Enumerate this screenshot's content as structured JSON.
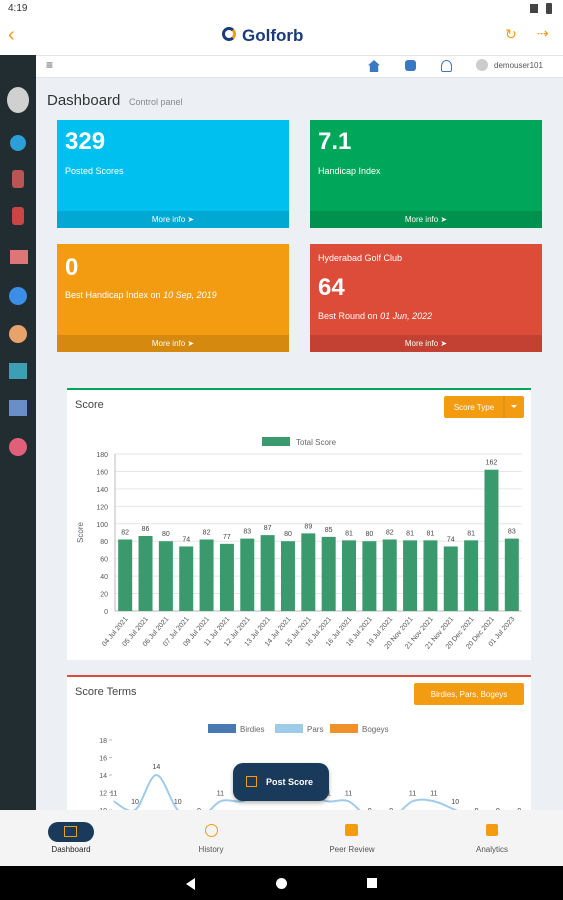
{
  "status_bar": {
    "time": "4:19"
  },
  "header": {
    "brand": "Golforb"
  },
  "toolbar": {
    "user": "demouser101"
  },
  "page": {
    "title": "Dashboard",
    "subtitle": "Control panel"
  },
  "cards": [
    {
      "value": 329,
      "label": "Posted Scores",
      "link": "More info"
    },
    {
      "value": 7.1,
      "label": "Handicap Index",
      "link": "More info"
    },
    {
      "value": 0,
      "label": "Best Handicap Index on",
      "date": "10 Sep, 2019",
      "link": "More info"
    },
    {
      "club": "Hyderabad Golf Club",
      "value": 64,
      "label": "Best Round on",
      "date": "01 Jun, 2022",
      "link": "More info"
    }
  ],
  "chart_data": [
    {
      "type": "bar",
      "title": "Score",
      "button": "Score Type",
      "ylabel": "Score",
      "categories": [
        "04 Jul 2021",
        "05 Jul 2021",
        "06 Jul 2021",
        "07 Jul 2021",
        "09 Jul 2021",
        "11 Jul 2021",
        "12 Jul 2021",
        "13 Jul 2021",
        "14 Jul 2021",
        "15 Jul 2021",
        "16 Jul 2021",
        "16 Jul 2021",
        "18 Jul 2021",
        "19 Jul 2021",
        "20 Nov 2021",
        "21 Nov 2021",
        "21 Nov 2021",
        "20 Dec 2021",
        "20 Dec 2021",
        "01 Jul 2023"
      ],
      "series": [
        {
          "name": "Total Score",
          "color": "#3a9a6e",
          "values": [
            82,
            86,
            80,
            74,
            82,
            77,
            83,
            87,
            80,
            89,
            85,
            81,
            80,
            82,
            81,
            81,
            74,
            81,
            162,
            83
          ]
        }
      ],
      "ylim": [
        0,
        180
      ],
      "yticks": [
        0,
        20,
        40,
        60,
        80,
        100,
        120,
        140,
        160,
        180
      ],
      "grid": true
    },
    {
      "type": "line",
      "title": "Score Terms",
      "button": "Birdies, Pars, Bogeys",
      "legend": [
        {
          "name": "Birdies",
          "color": "#4a78b0"
        },
        {
          "name": "Pars",
          "color": "#9fcbea"
        },
        {
          "name": "Bogeys",
          "color": "#f0902a"
        }
      ],
      "categories": [
        null,
        null,
        null,
        null,
        null,
        null,
        null,
        null,
        null,
        null,
        null,
        null,
        null,
        null,
        null,
        null,
        null,
        null,
        null,
        null
      ],
      "series": [
        {
          "name": "Pars",
          "color": "#9fcbea",
          "values": [
            11,
            10,
            14,
            10,
            9,
            11,
            11,
            12,
            14,
            12,
            11,
            11,
            9,
            9,
            11,
            11,
            10,
            9,
            9,
            9
          ]
        }
      ],
      "ylim": [
        0,
        18
      ],
      "yticks": [
        10,
        12,
        14,
        16,
        18
      ]
    }
  ],
  "fab": {
    "label": "Post Score"
  },
  "bottom_nav": [
    "Dashboard",
    "History",
    "Peer Review",
    "Analytics"
  ]
}
